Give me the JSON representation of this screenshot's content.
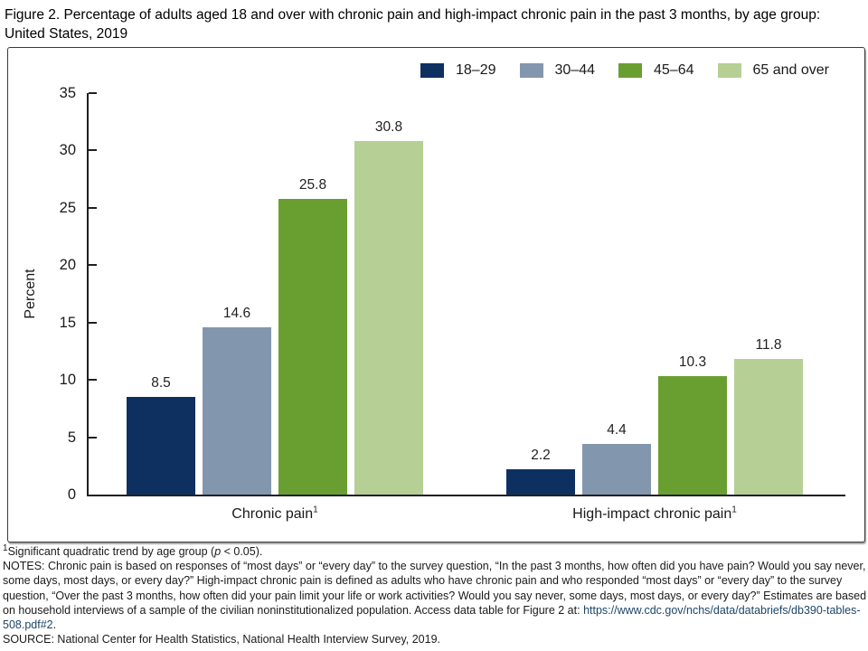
{
  "title": "Figure 2. Percentage of adults aged 18 and over with chronic pain and high-impact chronic pain in the past 3 months, by age group: United States, 2019",
  "chart_data": {
    "type": "bar",
    "title": "Percentage of adults aged 18 and over with chronic pain and high-impact chronic pain in the past 3 months, by age group: United States, 2019",
    "xlabel": "",
    "ylabel": "Percent",
    "ylim": [
      0,
      35
    ],
    "yticks": [
      0,
      5,
      10,
      15,
      20,
      25,
      30,
      35
    ],
    "grid": false,
    "legend_position": "top-right",
    "value_labels": true,
    "categories": [
      "Chronic pain",
      "High-impact chronic pain"
    ],
    "category_footnote_marker": "1",
    "series": [
      {
        "name": "18–29",
        "color": "#0d3061",
        "values": [
          8.5,
          2.2
        ]
      },
      {
        "name": "30–44",
        "color": "#8297ad",
        "values": [
          14.6,
          4.4
        ]
      },
      {
        "name": "45–64",
        "color": "#699f30",
        "values": [
          25.8,
          10.3
        ]
      },
      {
        "name": "65 and over",
        "color": "#b6cf95",
        "values": [
          30.8,
          11.8
        ]
      }
    ]
  },
  "colors": {
    "axis": "#231f20",
    "frame_border": "#3a3a3a",
    "link": "#1c4668"
  },
  "footnotes": {
    "significance": {
      "marker": "1",
      "text_before_italic": "Significant quadratic trend by age group (",
      "italic": "p",
      "text_after_italic": " < 0.05)."
    },
    "notes": "NOTES: Chronic pain is based on responses of “most days” or “every day” to the survey question, “In the past 3 months, how often did you have pain? Would you say never, some days, most days, or every day?” High-impact chronic pain is defined as adults who have chronic pain and who responded “most days” or “every day” to the survey question, “Over the past 3 months, how often did your pain limit your life or work activities? Would you say never, some days, most days, or every day?” Estimates are based on household interviews of a sample of the civilian noninstitutionalized population. Access data table for Figure 2 at:",
    "link": "https://www.cdc.gov/nchs/data/databriefs/db390-tables-508.pdf#2",
    "link_suffix": ".",
    "source": "SOURCE: National Center for Health Statistics, National Health Interview Survey, 2019."
  }
}
